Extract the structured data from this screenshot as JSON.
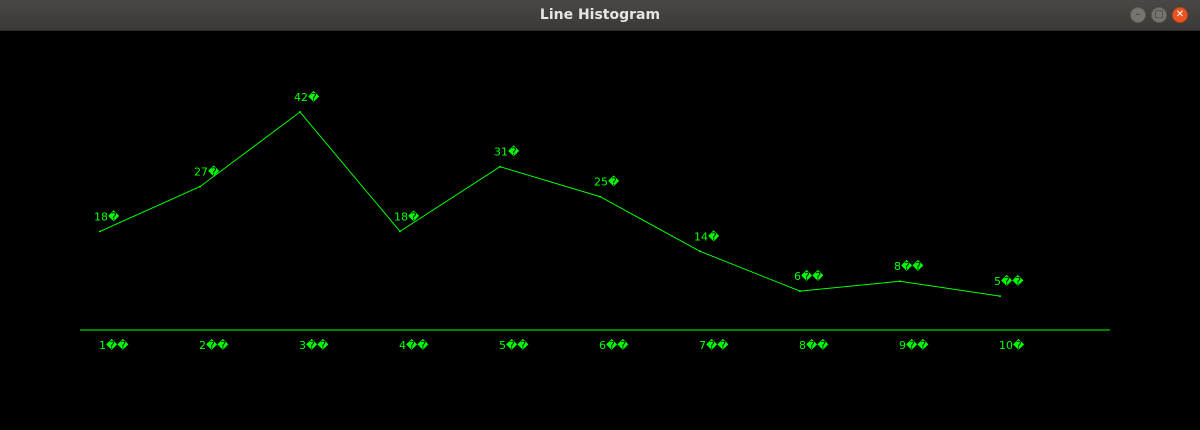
{
  "window": {
    "title": "Line Histogram",
    "controls": {
      "minimize_icon": "minimize-icon",
      "maximize_icon": "maximize-icon",
      "close_icon": "close-icon"
    }
  },
  "colors": {
    "background": "#000000",
    "line": "#00ff00",
    "text": "#00ff00",
    "titlebar": "#3c3b37",
    "close": "#e95420"
  },
  "chart_data": {
    "type": "line",
    "title": "",
    "xlabel": "",
    "ylabel": "",
    "categories": [
      "1月",
      "2月",
      "3月",
      "4月",
      "5月",
      "6月",
      "7月",
      "8月",
      "9月",
      "10月"
    ],
    "tick_labels": [
      "1��",
      "2��",
      "3��",
      "4��",
      "5��",
      "6��",
      "7��",
      "8��",
      "9��",
      "10�"
    ],
    "values": [
      18,
      27,
      42,
      18,
      31,
      25,
      14,
      6,
      8,
      5
    ],
    "data_labels": [
      "18�",
      "27�",
      "42�",
      "18�",
      "31�",
      "25�",
      "14�",
      "6��",
      "8��",
      "5��"
    ],
    "ylim": [
      0,
      42
    ],
    "grid": false,
    "legend": "none"
  }
}
